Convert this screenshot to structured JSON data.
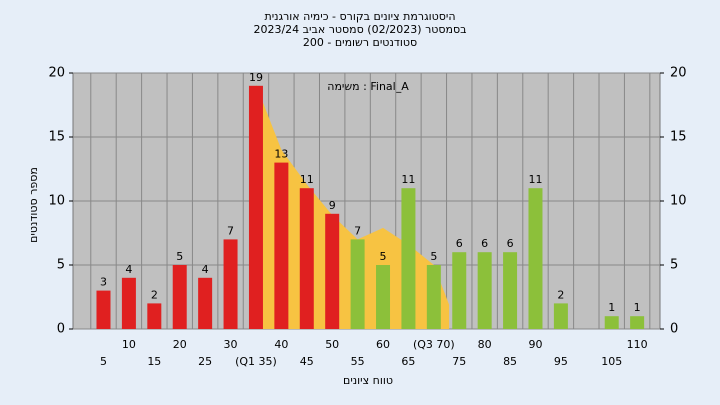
{
  "chart_data": {
    "type": "bar",
    "title": "היסטוגרמת ציונים בקורס - כימיה אורגנית",
    "subtitle": "בסמסטר  (02/2023)  סמסטר אביב 2023/24",
    "subtitle2": "סטודנטים רשומים - 200",
    "annotation": "משימה : Final_A",
    "y_label": "מספר סטודנטים",
    "x_label": "טווח ציונים",
    "categories": [
      "5",
      "10",
      "15",
      "20",
      "25",
      "30",
      "(Q1 35)",
      "40",
      "45",
      "50",
      "55",
      "60",
      "65",
      "(Q3 70)",
      "75",
      "80",
      "85",
      "90",
      "95",
      null,
      "105",
      "110"
    ],
    "values": [
      3,
      4,
      2,
      5,
      4,
      7,
      19,
      13,
      11,
      9,
      7,
      5,
      11,
      5,
      6,
      6,
      6,
      11,
      2,
      0,
      1,
      1
    ],
    "colors": [
      "#e02020",
      "#e02020",
      "#e02020",
      "#e02020",
      "#e02020",
      "#e02020",
      "#e02020",
      "#e02020",
      "#e02020",
      "#e02020",
      "#8cc03a",
      "#8cc03a",
      "#8cc03a",
      "#8cc03a",
      "#8cc03a",
      "#8cc03a",
      "#8cc03a",
      "#8cc03a",
      "#8cc03a",
      "#8cc03a",
      "#8cc03a",
      "#8cc03a"
    ],
    "area": {
      "color": "#f7c342",
      "x": [
        35,
        40,
        45,
        50,
        55,
        60,
        65,
        70,
        73
      ],
      "values": [
        19.1,
        14,
        11.3,
        8.9,
        7,
        7.9,
        6.6,
        5,
        1.9
      ]
    },
    "xlim": [
      -1.2,
      21.9
    ],
    "ylim": [
      0,
      20
    ],
    "yticks": [
      0,
      5,
      10,
      15,
      20
    ],
    "y2lim": [
      0,
      20
    ],
    "y2ticks": [
      0,
      5,
      10,
      15,
      20
    ],
    "grid": true
  }
}
